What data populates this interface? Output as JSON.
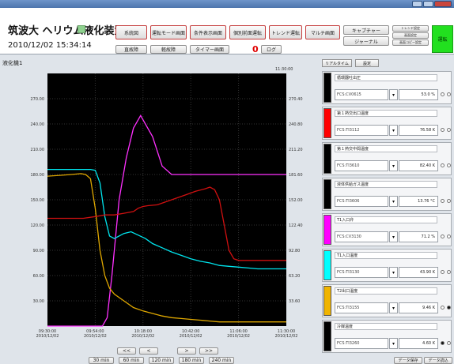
{
  "header": {
    "title": "筑波大 ヘリウム液化装置",
    "datetime": "2010/12/02 15:34:14",
    "indicator_labels": [
      "",
      "",
      ""
    ],
    "nav_row1": [
      "系統図",
      "運転モード画面",
      "条件表示画面",
      "個別前面運転",
      "トレンド運転",
      "マルチ画面"
    ],
    "nav_row2": [
      "直故障",
      "軽故障",
      "タイマー画面"
    ],
    "alarm_count": "0",
    "log_label": "ログ",
    "capture_label": "キャプチャー",
    "journal_label": "ジャーナル",
    "small_right": [
      "トレンド設定",
      "画面設定",
      "画面コピー設定"
    ],
    "run_label": "運転"
  },
  "chart_panel": {
    "title": "液化機1",
    "top_time": "11:30:00",
    "scroll_buttons": [
      "<<",
      "<",
      ">",
      ">>"
    ],
    "range_buttons": [
      "30 min",
      "60 min",
      "120 min",
      "180 min",
      "240 min"
    ]
  },
  "chart_data": {
    "type": "line",
    "x_ticks": [
      "09:30:00\n2010/12/02",
      "09:54:00\n2010/12/02",
      "10:18:00\n2010/12/02",
      "10:42:00\n2010/12/02",
      "11:06:00\n2010/12/02",
      "11:30:00\n2010/12/02"
    ],
    "y_left_ticks": [
      "270.00",
      "240.00",
      "210.00",
      "180.00",
      "150.00",
      "120.00",
      "90.00",
      "60.00",
      "30.00"
    ],
    "y_right_ticks": [
      "270.40",
      "240.80",
      "211.20",
      "181.60",
      "152.00",
      "122.40",
      "92.80",
      "63.20",
      "33.60"
    ],
    "series": [
      {
        "color": "#ff30ff",
        "x": [
          0,
          10,
          20,
          23,
          25,
          27,
          30,
          33,
          36,
          39,
          40,
          44,
          48,
          52,
          56,
          100
        ],
        "y": [
          0,
          0,
          0,
          0,
          10,
          60,
          150,
          200,
          235,
          250,
          245,
          225,
          190,
          180,
          180,
          180
        ]
      },
      {
        "color": "#00e5ee",
        "x": [
          0,
          14,
          18,
          20,
          22,
          24,
          26,
          28,
          32,
          35,
          38,
          41,
          44,
          48,
          52,
          56,
          60,
          64,
          68,
          72,
          76,
          80,
          84,
          88,
          92,
          96,
          100
        ],
        "y": [
          186,
          186,
          186,
          185,
          170,
          130,
          107,
          104,
          110,
          112,
          108,
          104,
          98,
          93,
          88,
          84,
          80,
          77,
          75,
          72,
          71,
          70,
          69,
          68,
          68,
          68,
          68
        ]
      },
      {
        "color": "#e0a800",
        "x": [
          0,
          5,
          10,
          14,
          16,
          18,
          20,
          22,
          24,
          26,
          28,
          32,
          36,
          40,
          44,
          48,
          52,
          56,
          60,
          64,
          68,
          72,
          76,
          80,
          84,
          88,
          92,
          96,
          100
        ],
        "y": [
          178,
          179,
          180,
          181,
          180,
          175,
          140,
          90,
          60,
          45,
          38,
          30,
          22,
          18,
          15,
          12,
          10,
          9,
          8,
          7,
          6,
          5,
          5,
          5,
          5,
          5,
          5,
          5,
          5
        ]
      },
      {
        "color": "#d01010",
        "x": [
          0,
          15,
          20,
          24,
          28,
          32,
          36,
          38,
          40,
          42,
          46,
          50,
          54,
          58,
          62,
          66,
          68,
          70,
          72,
          74,
          76,
          78,
          80,
          84,
          88,
          92,
          96,
          100
        ],
        "y": [
          128,
          128,
          130,
          132,
          132,
          134,
          136,
          140,
          142,
          143,
          144,
          148,
          152,
          156,
          160,
          163,
          165,
          162,
          150,
          120,
          90,
          80,
          78,
          78,
          78,
          78,
          78,
          78
        ]
      }
    ],
    "xlim": [
      0,
      100
    ],
    "ylim": [
      0,
      300
    ]
  },
  "right_panel": {
    "tabs": [
      "リアルタイム",
      "設定"
    ],
    "channels": [
      {
        "name": "循環器吐出圧",
        "tag": "FCS:CV0615",
        "value": "53.0 %",
        "color": "#000000",
        "radio": 0
      },
      {
        "name": "第１熱交出口温度",
        "tag": "FCS:TI3112",
        "value": "76.58 K",
        "color": "#ff0000",
        "radio": 0
      },
      {
        "name": "第１熱交中間温度",
        "tag": "FCS:TI3610",
        "value": "82.40 K",
        "color": "#000000",
        "radio": 0
      },
      {
        "name": "液体供給ガス温度",
        "tag": "FCS:TI3606",
        "value": "13.76 °C",
        "color": "#000000",
        "radio": 0
      },
      {
        "name": "T1入口弁",
        "tag": "FCS:CV3130",
        "value": "71.2 %",
        "color": "#ff00ff",
        "radio": 0
      },
      {
        "name": "T1入口温度",
        "tag": "FCS:TI3130",
        "value": "43.90 K",
        "color": "#00ffff",
        "radio": 0
      },
      {
        "name": "T2出口温度",
        "tag": "FCS:TI3155",
        "value": "9.46 K",
        "color": "#f0b400",
        "radio": 1
      },
      {
        "name": "冷媒温度",
        "tag": "FCS:TI3260",
        "value": "4.60 K",
        "color": "#000000",
        "radio": 2
      }
    ],
    "bottom_buttons": [
      "データ保存",
      "データ読込"
    ]
  },
  "icons": {
    "dropdown": "chevron-down-icon",
    "radio": "radio-icon"
  }
}
